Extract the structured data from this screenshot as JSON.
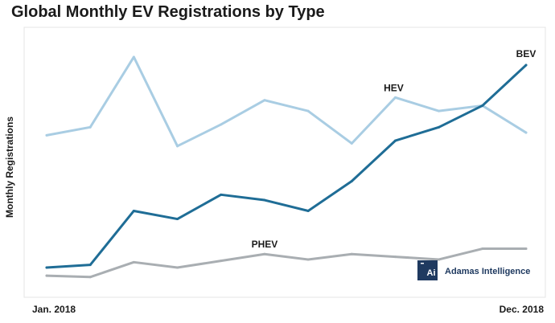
{
  "chart_data": {
    "type": "line",
    "title": "Global Monthly EV Registrations by Type",
    "xlabel": "",
    "ylabel": "Monthly Registrations",
    "x_tick_labels": [
      "Jan. 2018",
      "Dec. 2018"
    ],
    "x": [
      1,
      2,
      3,
      4,
      5,
      6,
      7,
      8,
      9,
      10,
      11,
      12
    ],
    "ylim": [
      0,
      100
    ],
    "grid": false,
    "legend": "none (series labeled inline)",
    "series": [
      {
        "name": "HEV",
        "color": "#a9cde3",
        "values": [
          60,
          63,
          89,
          56,
          64,
          73,
          69,
          57,
          74,
          69,
          71,
          61
        ]
      },
      {
        "name": "BEV",
        "color": "#1f6d96",
        "values": [
          11,
          12,
          32,
          29,
          38,
          36,
          32,
          43,
          58,
          63,
          71,
          86
        ]
      },
      {
        "name": "PHEV",
        "color": "#a9aeb2",
        "values": [
          8,
          7.5,
          13,
          11,
          13.5,
          16,
          14,
          16,
          15,
          14,
          18,
          18
        ]
      }
    ]
  },
  "brand": {
    "logo_text": "Ai",
    "name": "Adamas Intelligence",
    "color": "#1f3a60"
  }
}
